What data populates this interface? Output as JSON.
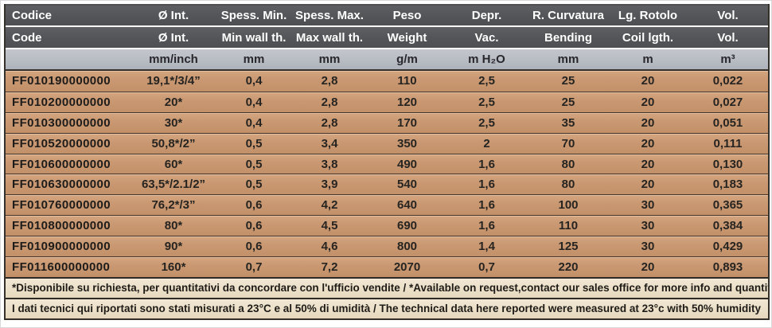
{
  "table": {
    "header_it": [
      "Codice",
      "Ø Int.",
      "Spess. Min.",
      "Spess. Max.",
      "Peso",
      "Depr.",
      "R. Curvatura",
      "Lg. Rotolo",
      "Vol."
    ],
    "header_en": [
      "Code",
      "Ø Int.",
      "Min wall th.",
      "Max wall th.",
      "Weight",
      "Vac.",
      "Bending",
      "Coil lgth.",
      "Vol."
    ],
    "units": [
      "",
      "mm/inch",
      "mm",
      "mm",
      "g/m",
      "m H₂O",
      "mm",
      "m",
      "m³"
    ],
    "rows": [
      [
        "FF010190000000",
        "19,1*/3/4”",
        "0,4",
        "2,8",
        "110",
        "2,5",
        "25",
        "20",
        "0,022"
      ],
      [
        "FF010200000000",
        "20*",
        "0,4",
        "2,8",
        "120",
        "2,5",
        "25",
        "20",
        "0,027"
      ],
      [
        "FF010300000000",
        "30*",
        "0,4",
        "2,8",
        "170",
        "2,5",
        "35",
        "20",
        "0,051"
      ],
      [
        "FF010520000000",
        "50,8*/2”",
        "0,5",
        "3,4",
        "350",
        "2",
        "70",
        "20",
        "0,111"
      ],
      [
        "FF010600000000",
        "60*",
        "0,5",
        "3,8",
        "490",
        "1,6",
        "80",
        "20",
        "0,130"
      ],
      [
        "FF010630000000",
        "63,5*/2.1/2”",
        "0,5",
        "3,9",
        "540",
        "1,6",
        "80",
        "20",
        "0,183"
      ],
      [
        "FF010760000000",
        "76,2*/3”",
        "0,6",
        "4,2",
        "640",
        "1,6",
        "100",
        "30",
        "0,365"
      ],
      [
        "FF010800000000",
        "80*",
        "0,6",
        "4,5",
        "690",
        "1,6",
        "110",
        "30",
        "0,384"
      ],
      [
        "FF010900000000",
        "90*",
        "0,6",
        "4,6",
        "800",
        "1,4",
        "125",
        "30",
        "0,429"
      ],
      [
        "FF011600000000",
        "160*",
        "0,7",
        "7,2",
        "2070",
        "0,7",
        "220",
        "20",
        "0,893"
      ]
    ],
    "notes": [
      "*Disponibile su richiesta, per quantitativi da concordare con l'ufficio vendite / *Available on request,contact our sales office for more info and quantities",
      "I dati tecnici qui riportati sono stati misurati a 23°C e al 50% di umidità / The technical data here reported were measured at 23°c with 50% humidity"
    ],
    "colors": {
      "header_bg": "#545558",
      "units_bg": "#b7bbc2",
      "row_bg": "#ca9973",
      "note_bg": "#ebdfc8",
      "border_dark": "#35302a"
    }
  }
}
